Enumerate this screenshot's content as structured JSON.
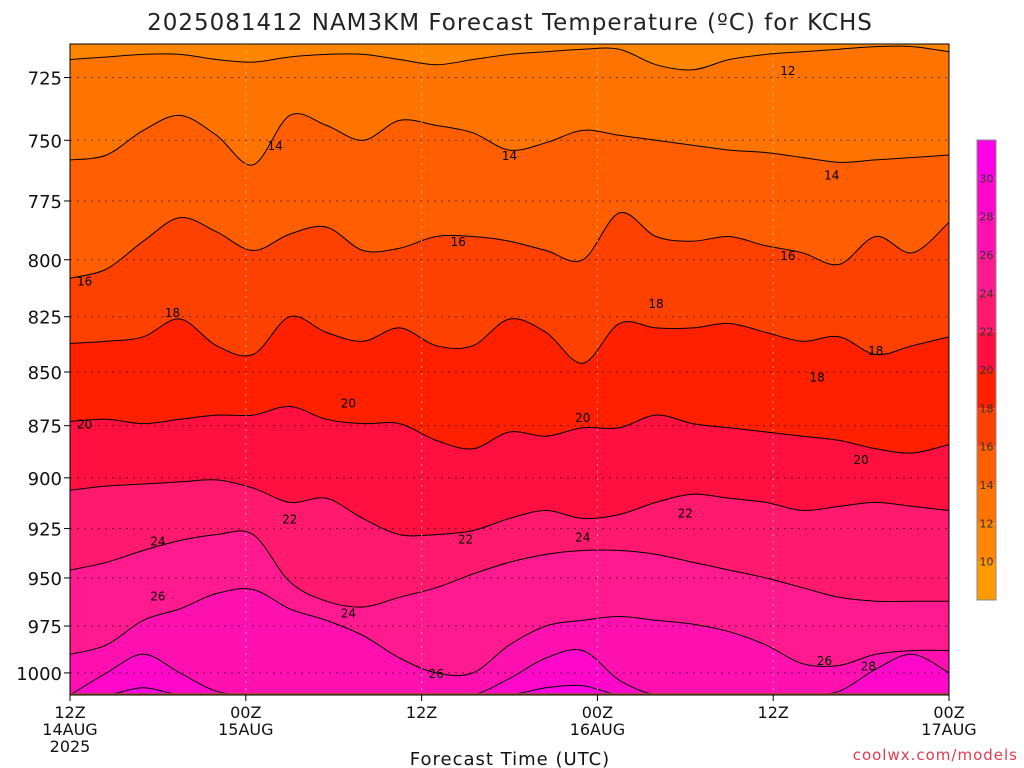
{
  "chart_data": {
    "type": "heatmap",
    "title": "2025081412 NAM3KM Forecast Temperature (ºC) for KCHS",
    "xlabel": "Forecast Time (UTC)",
    "ylabel": "",
    "credit": "coolwx.com/models",
    "x_hours_range": [
      0,
      60
    ],
    "x_ticks": [
      {
        "hour": 0,
        "lines": [
          "12Z",
          "14AUG",
          "2025"
        ]
      },
      {
        "hour": 12,
        "lines": [
          "00Z",
          "15AUG"
        ]
      },
      {
        "hour": 24,
        "lines": [
          "12Z"
        ]
      },
      {
        "hour": 36,
        "lines": [
          "00Z",
          "16AUG"
        ]
      },
      {
        "hour": 48,
        "lines": [
          "12Z"
        ]
      },
      {
        "hour": 60,
        "lines": [
          "00Z",
          "17AUG"
        ]
      }
    ],
    "y_scale": "pressure-log",
    "ylim": [
      1012,
      712
    ],
    "y_ticks": [
      725,
      750,
      775,
      800,
      825,
      850,
      875,
      900,
      925,
      950,
      975,
      1000
    ],
    "colorbar": {
      "ticks": [
        10,
        12,
        14,
        16,
        18,
        20,
        22,
        24,
        26,
        28,
        30
      ],
      "range": [
        8,
        32
      ],
      "levels": [
        {
          "min": 8,
          "max": 10,
          "color": "#ff9a00"
        },
        {
          "min": 10,
          "max": 12,
          "color": "#ff8600"
        },
        {
          "min": 12,
          "max": 14,
          "color": "#ff7300"
        },
        {
          "min": 14,
          "max": 16,
          "color": "#ff5f00"
        },
        {
          "min": 16,
          "max": 18,
          "color": "#ff4100"
        },
        {
          "min": 18,
          "max": 20,
          "color": "#ff2000"
        },
        {
          "min": 20,
          "max": 22,
          "color": "#ff1040"
        },
        {
          "min": 22,
          "max": 24,
          "color": "#ff1a6e"
        },
        {
          "min": 24,
          "max": 26,
          "color": "#ff1a90"
        },
        {
          "min": 26,
          "max": 28,
          "color": "#ff10b0"
        },
        {
          "min": 28,
          "max": 30,
          "color": "#ff08cc"
        },
        {
          "min": 30,
          "max": 32,
          "color": "#ff00e6"
        }
      ]
    },
    "surface_pressure_hPa": 1011,
    "terrain_color": "#a0522d",
    "isotherms": [
      {
        "value": 12,
        "pressure": [
          718,
          717,
          716,
          716,
          718,
          719,
          717,
          716,
          716,
          718,
          720,
          718,
          716,
          715,
          714,
          714,
          720,
          722,
          718,
          716,
          715,
          714,
          713,
          713,
          715
        ]
      },
      {
        "value": 14,
        "pressure": [
          758,
          756,
          746,
          740,
          748,
          760,
          740,
          744,
          750,
          742,
          744,
          747,
          754,
          751,
          746,
          748,
          750,
          752,
          754,
          755,
          757,
          759,
          758,
          757,
          756
        ]
      },
      {
        "value": 16,
        "pressure": [
          808,
          804,
          792,
          782,
          788,
          796,
          789,
          786,
          796,
          795,
          790,
          790,
          792,
          796,
          800,
          780,
          790,
          792,
          790,
          794,
          797,
          802,
          790,
          797,
          784
        ]
      },
      {
        "value": 18,
        "pressure": [
          837,
          836,
          834,
          826,
          838,
          842,
          825,
          832,
          836,
          830,
          838,
          838,
          826,
          832,
          846,
          828,
          830,
          830,
          828,
          832,
          836,
          834,
          842,
          838,
          834
        ]
      },
      {
        "value": 20,
        "pressure": [
          873,
          872,
          874,
          872,
          870,
          870,
          866,
          872,
          874,
          874,
          882,
          886,
          878,
          880,
          876,
          876,
          870,
          874,
          876,
          878,
          880,
          882,
          886,
          888,
          884
        ]
      },
      {
        "value": 22,
        "pressure": [
          906,
          904,
          903,
          902,
          901,
          905,
          912,
          910,
          920,
          928,
          928,
          926,
          920,
          916,
          920,
          918,
          912,
          908,
          910,
          912,
          916,
          914,
          912,
          914,
          916
        ]
      },
      {
        "value": 24,
        "pressure": [
          946,
          942,
          936,
          931,
          928,
          928,
          952,
          962,
          965,
          960,
          955,
          948,
          942,
          938,
          936,
          936,
          938,
          942,
          946,
          950,
          955,
          960,
          962,
          962,
          962
        ]
      },
      {
        "value": 26,
        "pressure": [
          990,
          985,
          972,
          966,
          958,
          956,
          966,
          972,
          980,
          992,
          1000,
          1000,
          985,
          975,
          972,
          970,
          972,
          974,
          978,
          985,
          995,
          996,
          990,
          988,
          988
        ]
      },
      {
        "value": 28,
        "pressure": [
          1012,
          1000,
          990,
          1000,
          1010,
          1012,
          1012,
          1012,
          1012,
          1012,
          1012,
          1012,
          1003,
          992,
          988,
          1004,
          1012,
          1012,
          1012,
          1012,
          1012,
          1010,
          998,
          990,
          1000
        ]
      },
      {
        "value": 30,
        "pressure": [
          1012,
          1012,
          1008,
          1012,
          1012,
          1012,
          1012,
          1012,
          1012,
          1012,
          1012,
          1012,
          1012,
          1008,
          1007,
          1012,
          1012,
          1012,
          1012,
          1012,
          1012,
          1012,
          1012,
          1012,
          1012
        ]
      }
    ],
    "contour_labels": [
      {
        "text": "12",
        "hour": 49.0,
        "pressure": 722
      },
      {
        "text": "14",
        "hour": 14.0,
        "pressure": 752
      },
      {
        "text": "14",
        "hour": 30.0,
        "pressure": 756
      },
      {
        "text": "14",
        "hour": 52.0,
        "pressure": 764
      },
      {
        "text": "16",
        "hour": 1.0,
        "pressure": 809
      },
      {
        "text": "16",
        "hour": 26.5,
        "pressure": 792
      },
      {
        "text": "16",
        "hour": 49.0,
        "pressure": 798
      },
      {
        "text": "18",
        "hour": 7.0,
        "pressure": 823
      },
      {
        "text": "18",
        "hour": 40.0,
        "pressure": 819
      },
      {
        "text": "18",
        "hour": 51.0,
        "pressure": 852
      },
      {
        "text": "18",
        "hour": 55.0,
        "pressure": 840
      },
      {
        "text": "20",
        "hour": 1.0,
        "pressure": 874
      },
      {
        "text": "20",
        "hour": 19.0,
        "pressure": 864
      },
      {
        "text": "20",
        "hour": 35.0,
        "pressure": 871
      },
      {
        "text": "20",
        "hour": 54.0,
        "pressure": 891
      },
      {
        "text": "22",
        "hour": 15.0,
        "pressure": 920
      },
      {
        "text": "22",
        "hour": 27.0,
        "pressure": 930
      },
      {
        "text": "22",
        "hour": 42.0,
        "pressure": 917
      },
      {
        "text": "24",
        "hour": 6.0,
        "pressure": 931
      },
      {
        "text": "24",
        "hour": 19.0,
        "pressure": 968
      },
      {
        "text": "24",
        "hour": 35.0,
        "pressure": 929
      },
      {
        "text": "26",
        "hour": 6.0,
        "pressure": 959
      },
      {
        "text": "26",
        "hour": 25.0,
        "pressure": 1000
      },
      {
        "text": "26",
        "hour": 51.5,
        "pressure": 993
      },
      {
        "text": "28",
        "hour": 54.5,
        "pressure": 996
      }
    ],
    "grid": true
  }
}
